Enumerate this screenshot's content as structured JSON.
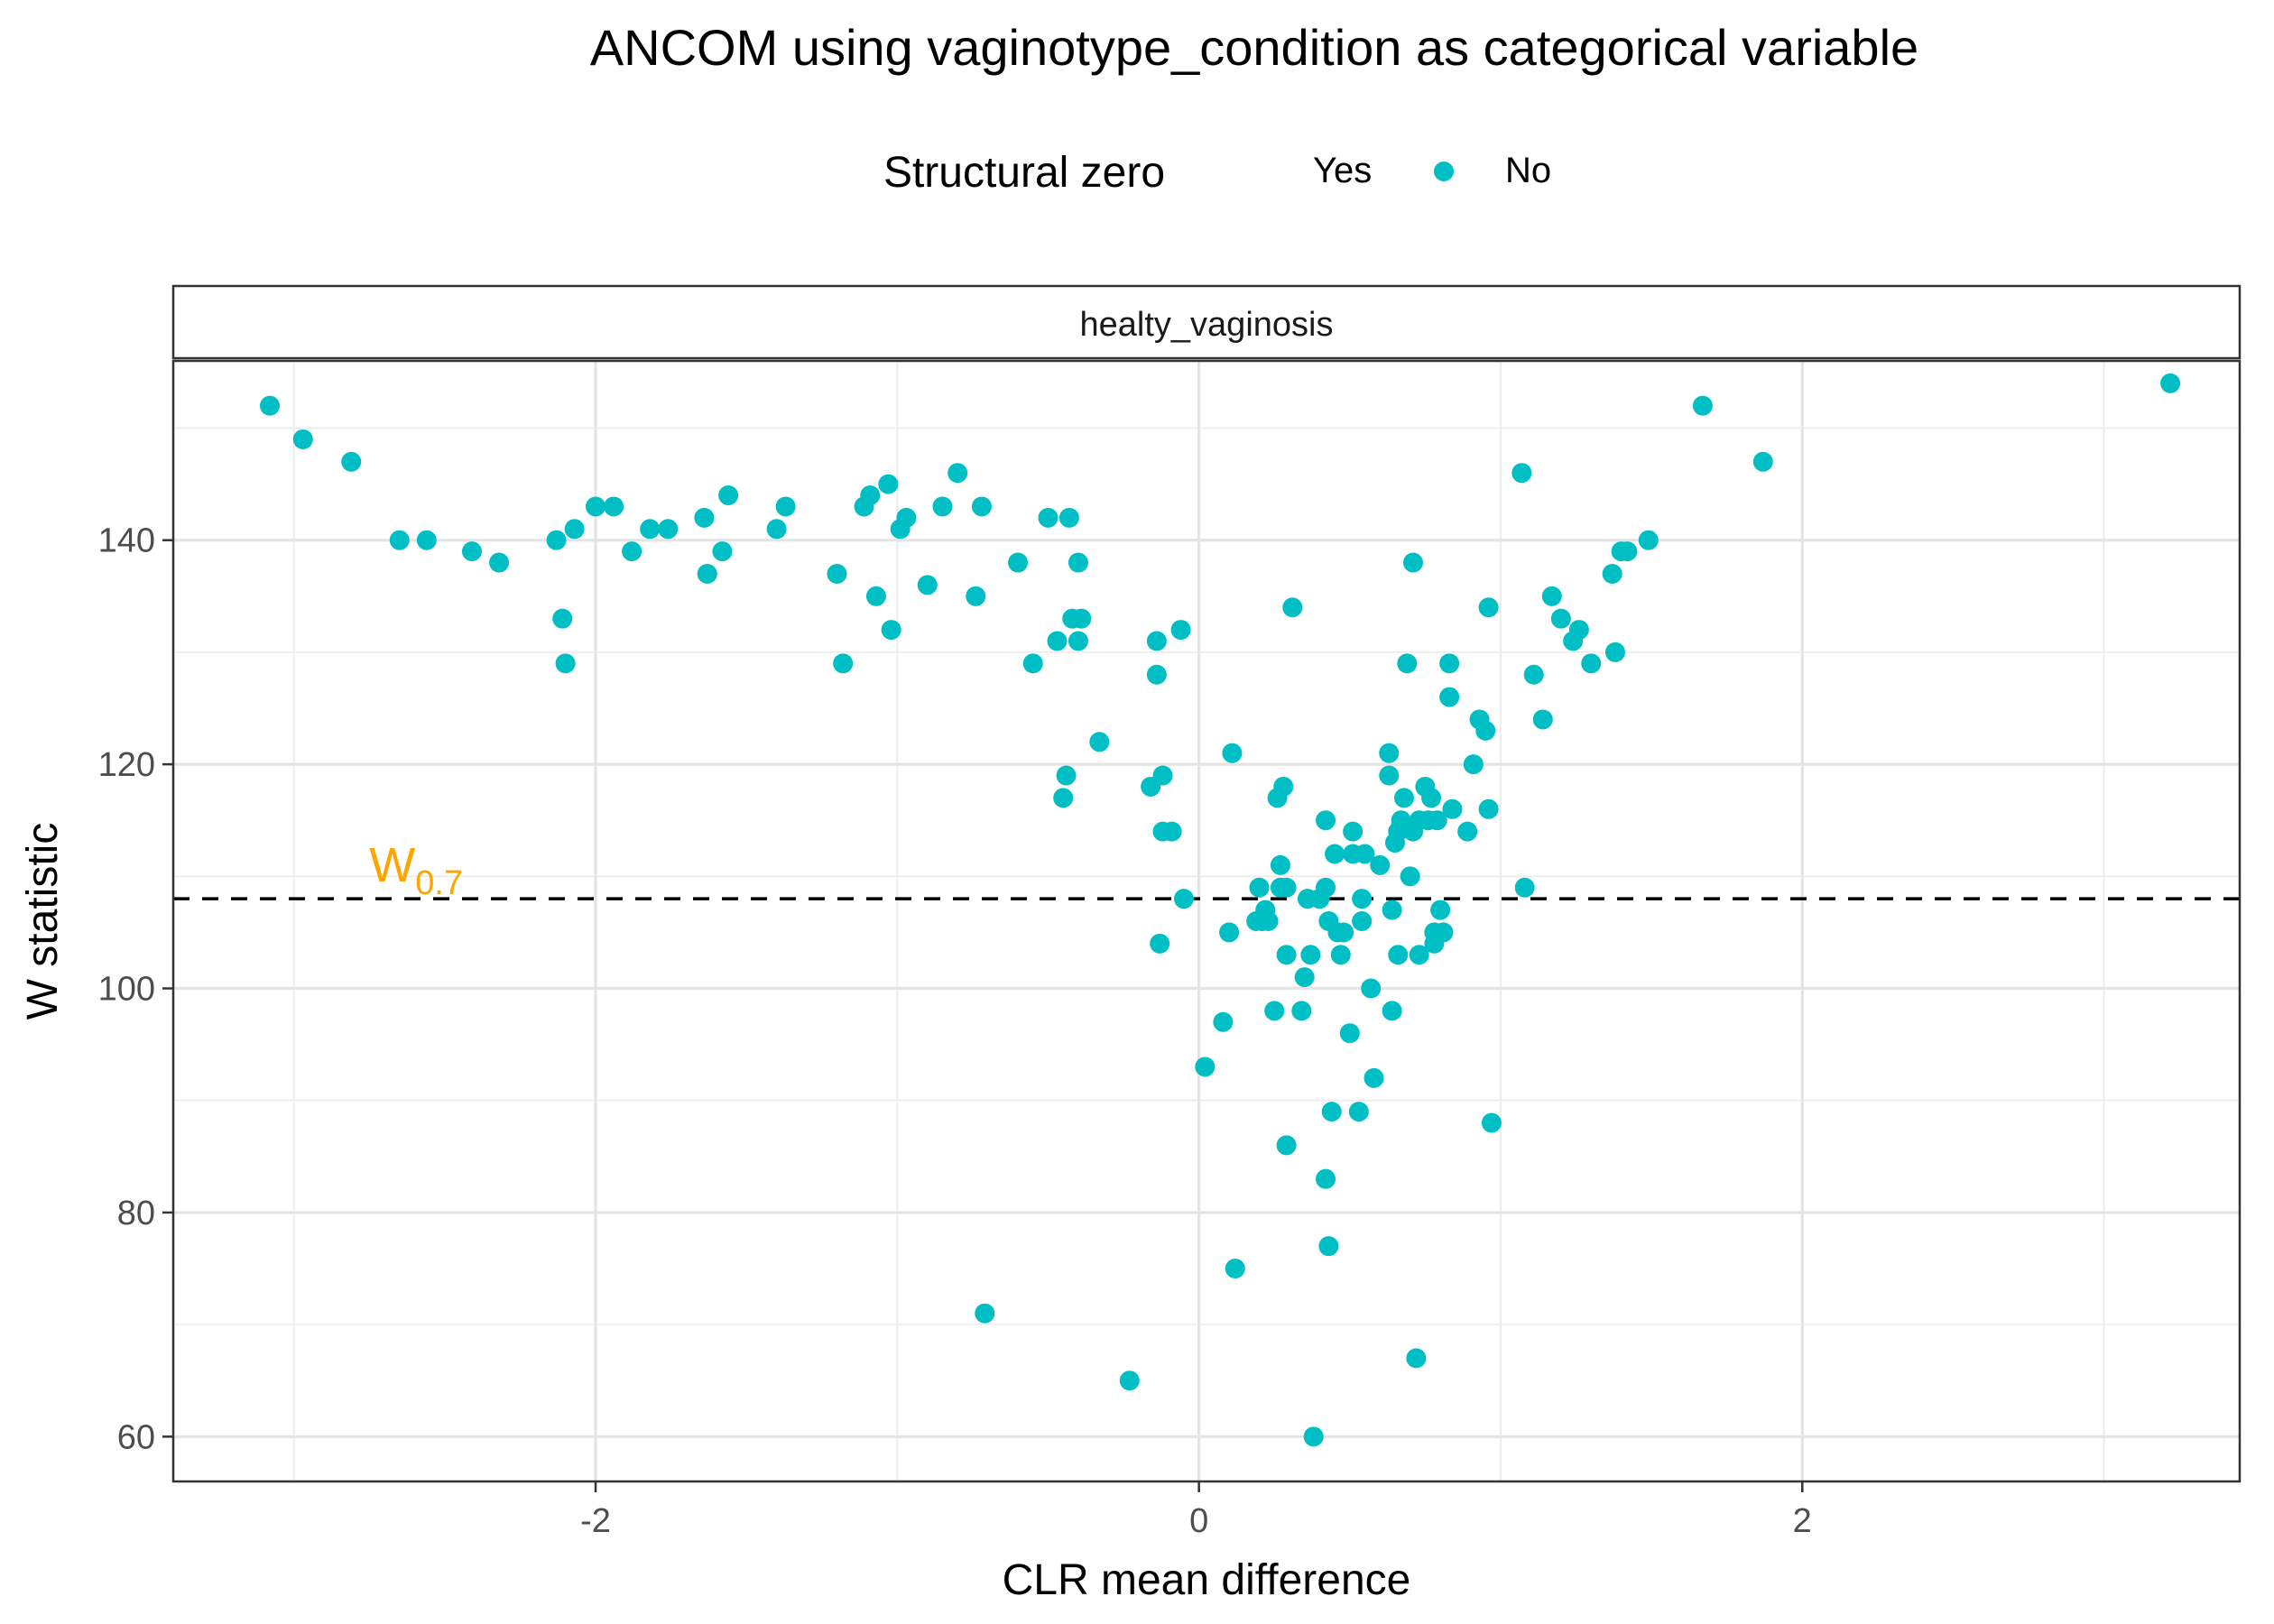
{
  "chart_data": {
    "type": "scatter",
    "title": "ANCOM using vaginotype_condition as categorical variable",
    "xlabel": "CLR mean difference",
    "ylabel": "W statistic",
    "facet_label": "healty_vaginosis",
    "xlim": [
      -3.4,
      3.45
    ],
    "ylim": [
      56,
      156
    ],
    "x_ticks": [
      -2,
      0,
      2
    ],
    "x_tick_labels": [
      "-2",
      "0",
      "2"
    ],
    "y_ticks": [
      60,
      80,
      100,
      120,
      140
    ],
    "y_tick_labels": [
      "60",
      "80",
      "100",
      "120",
      "140"
    ],
    "grid": true,
    "legend": {
      "title": "Structural zero",
      "placement": "top",
      "entries": [
        {
          "label": "Yes",
          "color": "#F8766D",
          "shown": false
        },
        {
          "label": "No",
          "color": "#00BFC4",
          "shown": true
        }
      ]
    },
    "threshold": {
      "value": 108,
      "label_main": "W",
      "label_sub": "0.7",
      "label_x": -2.75,
      "label_y": 111,
      "color": "#FFA500",
      "line_style": "dashed"
    },
    "series": [
      {
        "name": "No",
        "color": "#00BFC4",
        "points": [
          [
            -3.08,
            152
          ],
          [
            -2.97,
            149
          ],
          [
            -2.81,
            147
          ],
          [
            -2.65,
            140
          ],
          [
            -2.56,
            140
          ],
          [
            -2.41,
            139
          ],
          [
            -2.32,
            138
          ],
          [
            -2.13,
            140
          ],
          [
            -2.07,
            141
          ],
          [
            -2.0,
            143
          ],
          [
            -1.94,
            143
          ],
          [
            -1.88,
            139
          ],
          [
            -1.82,
            141
          ],
          [
            -1.76,
            141
          ],
          [
            -1.64,
            142
          ],
          [
            -1.58,
            139
          ],
          [
            -1.56,
            144
          ],
          [
            -1.63,
            137
          ],
          [
            -2.11,
            133
          ],
          [
            -2.1,
            129
          ],
          [
            -1.4,
            141
          ],
          [
            -1.37,
            143
          ],
          [
            -1.2,
            137
          ],
          [
            -1.18,
            129
          ],
          [
            -1.11,
            143
          ],
          [
            -1.09,
            144
          ],
          [
            -1.07,
            135
          ],
          [
            -1.03,
            145
          ],
          [
            -1.02,
            132
          ],
          [
            -0.99,
            141
          ],
          [
            -0.97,
            142
          ],
          [
            -0.9,
            136
          ],
          [
            -0.85,
            143
          ],
          [
            -0.8,
            146
          ],
          [
            -0.74,
            135
          ],
          [
            -0.72,
            143
          ],
          [
            -0.6,
            138
          ],
          [
            -0.55,
            129
          ],
          [
            -0.5,
            142
          ],
          [
            -0.47,
            131
          ],
          [
            -0.44,
            119
          ],
          [
            -0.45,
            117
          ],
          [
            -0.43,
            142
          ],
          [
            -0.42,
            133
          ],
          [
            -0.4,
            131
          ],
          [
            -0.4,
            138
          ],
          [
            -0.39,
            133
          ],
          [
            -0.33,
            122
          ],
          [
            -0.71,
            71
          ],
          [
            -0.23,
            65
          ],
          [
            -0.16,
            118
          ],
          [
            -0.14,
            131
          ],
          [
            -0.14,
            128
          ],
          [
            -0.12,
            119
          ],
          [
            -0.12,
            114
          ],
          [
            -0.09,
            114
          ],
          [
            -0.06,
            132
          ],
          [
            -0.05,
            108
          ],
          [
            -0.13,
            104
          ],
          [
            0.02,
            93
          ],
          [
            0.08,
            97
          ],
          [
            0.1,
            105
          ],
          [
            0.11,
            121
          ],
          [
            0.12,
            75
          ],
          [
            0.19,
            106
          ],
          [
            0.2,
            109
          ],
          [
            0.21,
            106
          ],
          [
            0.22,
            107
          ],
          [
            0.23,
            106
          ],
          [
            0.25,
            98
          ],
          [
            0.26,
            117
          ],
          [
            0.27,
            109
          ],
          [
            0.27,
            111
          ],
          [
            0.28,
            118
          ],
          [
            0.29,
            109
          ],
          [
            0.29,
            103
          ],
          [
            0.29,
            86
          ],
          [
            0.31,
            134
          ],
          [
            0.34,
            98
          ],
          [
            0.35,
            101
          ],
          [
            0.36,
            108
          ],
          [
            0.37,
            103
          ],
          [
            0.38,
            60
          ],
          [
            0.4,
            108
          ],
          [
            0.42,
            115
          ],
          [
            0.42,
            109
          ],
          [
            0.42,
            83
          ],
          [
            0.43,
            77
          ],
          [
            0.43,
            106
          ],
          [
            0.44,
            89
          ],
          [
            0.45,
            112
          ],
          [
            0.46,
            105
          ],
          [
            0.47,
            103
          ],
          [
            0.48,
            105
          ],
          [
            0.5,
            96
          ],
          [
            0.51,
            112
          ],
          [
            0.51,
            114
          ],
          [
            0.53,
            89
          ],
          [
            0.54,
            106
          ],
          [
            0.54,
            108
          ],
          [
            0.55,
            112
          ],
          [
            0.57,
            100
          ],
          [
            0.58,
            92
          ],
          [
            0.6,
            111
          ],
          [
            0.63,
            121
          ],
          [
            0.63,
            119
          ],
          [
            0.64,
            98
          ],
          [
            0.64,
            107
          ],
          [
            0.65,
            113
          ],
          [
            0.66,
            103
          ],
          [
            0.66,
            114
          ],
          [
            0.67,
            115
          ],
          [
            0.68,
            117
          ],
          [
            0.69,
            129
          ],
          [
            0.7,
            110
          ],
          [
            0.71,
            138
          ],
          [
            0.71,
            114
          ],
          [
            0.72,
            67
          ],
          [
            0.73,
            103
          ],
          [
            0.73,
            115
          ],
          [
            0.75,
            118
          ],
          [
            0.76,
            115
          ],
          [
            0.77,
            117
          ],
          [
            0.78,
            104
          ],
          [
            0.78,
            105
          ],
          [
            0.79,
            115
          ],
          [
            0.8,
            107
          ],
          [
            0.81,
            105
          ],
          [
            0.83,
            129
          ],
          [
            0.83,
            126
          ],
          [
            0.84,
            116
          ],
          [
            0.89,
            114
          ],
          [
            0.91,
            120
          ],
          [
            0.93,
            124
          ],
          [
            0.95,
            123
          ],
          [
            0.96,
            116
          ],
          [
            0.96,
            134
          ],
          [
            0.97,
            88
          ],
          [
            1.07,
            146
          ],
          [
            1.08,
            109
          ],
          [
            1.11,
            128
          ],
          [
            1.14,
            124
          ],
          [
            1.17,
            135
          ],
          [
            1.2,
            133
          ],
          [
            1.24,
            131
          ],
          [
            1.26,
            132
          ],
          [
            1.3,
            129
          ],
          [
            1.37,
            137
          ],
          [
            1.38,
            130
          ],
          [
            1.4,
            139
          ],
          [
            1.42,
            139
          ],
          [
            1.49,
            140
          ],
          [
            1.67,
            152
          ],
          [
            1.87,
            147
          ],
          [
            3.22,
            154
          ]
        ]
      }
    ]
  }
}
